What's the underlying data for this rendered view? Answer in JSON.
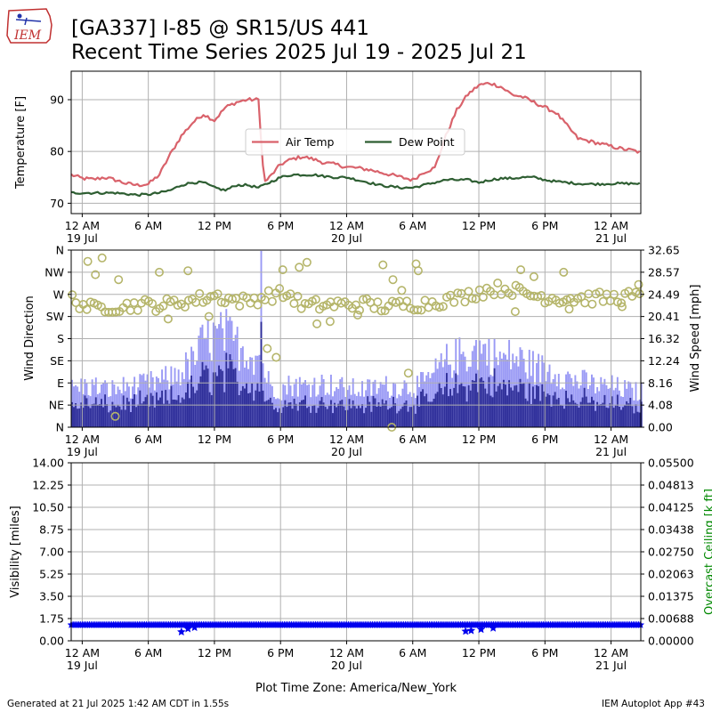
{
  "header": {
    "logo_text": "IEM",
    "title_line1": "[GA337] I-85 @ SR15/US 441",
    "title_line2": "Recent Time Series 2025 Jul 19 - 2025 Jul 21"
  },
  "footer": {
    "generated": "Generated at 21 Jul 2025 1:42 AM CDT in 1.55s",
    "app": "IEM Autoplot App #43"
  },
  "colors": {
    "air_temp": "#d9626b",
    "dew_point": "#2e5e32",
    "wind_dir": "#b5b56a",
    "wind_speed": "#9a9af5",
    "wind_speed_dark": "#2e2e99",
    "visibility": "#0000ee",
    "ceiling_axis": "#008800",
    "grid": "#b0b0b0"
  },
  "chart_data": [
    {
      "type": "line",
      "name": "temperature_panel",
      "ylabel": "Temperature [F]",
      "ylim": [
        68,
        95.5
      ],
      "yticks": [
        70,
        80,
        90
      ],
      "grid": true,
      "legend_position": "center",
      "x_hours": [
        -1,
        0,
        1,
        2,
        3,
        4,
        5,
        6,
        7,
        8,
        9,
        10,
        11,
        12,
        13,
        14,
        15,
        16,
        16.5,
        17,
        18,
        19,
        20,
        21,
        22,
        23,
        24,
        25,
        26,
        27,
        28,
        29,
        30,
        31,
        32,
        33,
        34,
        35,
        36,
        37,
        38,
        39,
        40,
        41,
        42,
        43,
        44,
        45,
        46,
        47,
        48,
        49,
        50,
        50.7
      ],
      "series": [
        {
          "name": "Air Temp",
          "values": [
            75.5,
            74.8,
            74.6,
            75.0,
            74.5,
            73.8,
            73.5,
            73.7,
            75.5,
            79.5,
            83.0,
            85.5,
            87.2,
            86.0,
            88.5,
            89.5,
            90.0,
            90.0,
            74.0,
            75.0,
            77.5,
            78.5,
            79.0,
            78.5,
            77.8,
            77.5,
            77.0,
            76.8,
            76.5,
            76.0,
            75.5,
            75.0,
            74.5,
            76.0,
            76.8,
            83.0,
            88.0,
            91.0,
            92.8,
            93.2,
            92.5,
            91.0,
            90.5,
            89.5,
            88.5,
            87.5,
            85.0,
            82.5,
            82.0,
            81.5,
            81.0,
            80.5,
            80.2,
            79.8
          ]
        },
        {
          "name": "Dew Point",
          "values": [
            72.0,
            72.0,
            72.0,
            72.0,
            72.0,
            71.8,
            71.6,
            71.7,
            72.0,
            72.5,
            73.5,
            74.0,
            74.0,
            73.0,
            72.5,
            73.5,
            73.5,
            73.0,
            73.5,
            74.0,
            75.0,
            75.5,
            75.5,
            75.5,
            75.2,
            75.0,
            75.0,
            74.5,
            74.0,
            73.5,
            73.2,
            73.0,
            73.0,
            73.5,
            74.0,
            74.5,
            74.5,
            74.5,
            74.0,
            74.5,
            74.8,
            74.8,
            75.0,
            75.0,
            74.5,
            74.2,
            74.0,
            73.8,
            73.7,
            73.7,
            73.8,
            73.8,
            73.8,
            73.8
          ]
        }
      ]
    },
    {
      "type": "scatter",
      "name": "wind_panel",
      "ylabel_left": "Wind Direction",
      "ylabel_right": "Wind Speed [mph]",
      "left_ticks": [
        "N",
        "NE",
        "E",
        "SE",
        "S",
        "SW",
        "W",
        "NW",
        "N"
      ],
      "right_ticks": [
        "0.00",
        "4.08",
        "8.16",
        "12.24",
        "16.32",
        "20.41",
        "24.49",
        "28.57",
        "32.65"
      ],
      "ylim_direction_deg": [
        0,
        360
      ],
      "ylim_speed_mph": [
        0,
        32.65
      ],
      "grid": true,
      "speed_hours": [
        -1,
        0,
        1,
        2,
        3,
        4,
        5,
        6,
        7,
        8,
        9,
        10,
        11,
        12,
        13,
        14,
        15,
        16,
        17,
        18,
        19,
        20,
        21,
        22,
        23,
        24,
        25,
        26,
        27,
        28,
        29,
        30,
        31,
        32,
        33,
        34,
        35,
        36,
        37,
        38,
        39,
        40,
        41,
        42,
        43,
        44,
        45,
        46,
        47,
        48,
        49,
        50,
        50.7
      ],
      "speed_mph": [
        7,
        7.5,
        7.5,
        7,
        7,
        7.5,
        7.5,
        8,
        8.5,
        9,
        10.5,
        12,
        16,
        16.5,
        17,
        15,
        14,
        13,
        7.5,
        7,
        8,
        7.5,
        8,
        8,
        7.5,
        7,
        7,
        7,
        7.5,
        7.5,
        7.5,
        7.5,
        8,
        10,
        12,
        13,
        13.5,
        14.5,
        13.5,
        12.5,
        13,
        12,
        11,
        10.5,
        10.5,
        9,
        8.5,
        8,
        7.5,
        7.5,
        7,
        6.5,
        6.5
      ],
      "speed_peak": {
        "hour": 16.2,
        "mph": 32.5
      },
      "direction_hours": [
        -1,
        0,
        1,
        2,
        3,
        4,
        5,
        6,
        7,
        8,
        9,
        10,
        11,
        12,
        13,
        14,
        15,
        16,
        17,
        18,
        19,
        20,
        21,
        22,
        23,
        24,
        25,
        26,
        27,
        28,
        29,
        30,
        31,
        32,
        33,
        34,
        35,
        36,
        37,
        38,
        39,
        40,
        41,
        42,
        43,
        44,
        45,
        46,
        47,
        48,
        49,
        50,
        50.7
      ],
      "direction_deg": [
        262,
        250,
        240,
        245,
        245,
        245,
        250,
        248,
        248,
        250,
        255,
        258,
        262,
        268,
        262,
        258,
        255,
        262,
        268,
        270,
        268,
        245,
        248,
        248,
        250,
        248,
        250,
        250,
        245,
        245,
        248,
        250,
        250,
        255,
        258,
        262,
        268,
        275,
        280,
        282,
        280,
        272,
        268,
        265,
        262,
        262,
        262,
        262,
        262,
        262,
        265,
        265,
        262
      ],
      "direction_outliers": [
        {
          "hour": 0.5,
          "deg": 337
        },
        {
          "hour": 1.8,
          "deg": 344
        },
        {
          "hour": 1.2,
          "deg": 310
        },
        {
          "hour": 3.3,
          "deg": 300
        },
        {
          "hour": 7.0,
          "deg": 315
        },
        {
          "hour": 9.6,
          "deg": 318
        },
        {
          "hour": 16.8,
          "deg": 160
        },
        {
          "hour": 17.6,
          "deg": 142
        },
        {
          "hour": 18.2,
          "deg": 320
        },
        {
          "hour": 19.7,
          "deg": 325
        },
        {
          "hour": 20.4,
          "deg": 335
        },
        {
          "hour": 21.3,
          "deg": 210
        },
        {
          "hour": 22.5,
          "deg": 215
        },
        {
          "hour": 27.3,
          "deg": 330
        },
        {
          "hour": 28.2,
          "deg": 300
        },
        {
          "hour": 29.0,
          "deg": 278
        },
        {
          "hour": 30.3,
          "deg": 332
        },
        {
          "hour": 30.5,
          "deg": 318
        },
        {
          "hour": 29.6,
          "deg": 110
        },
        {
          "hour": 28.1,
          "deg": 0
        },
        {
          "hour": 3.0,
          "deg": 22
        },
        {
          "hour": 39.8,
          "deg": 320
        },
        {
          "hour": 44.2,
          "deg": 240
        },
        {
          "hour": 49.0,
          "deg": 245
        },
        {
          "hour": 41.0,
          "deg": 306
        },
        {
          "hour": 43.7,
          "deg": 315
        },
        {
          "hour": 50.5,
          "deg": 290
        },
        {
          "hour": 7.8,
          "deg": 220
        },
        {
          "hour": 11.5,
          "deg": 225
        },
        {
          "hour": 25.0,
          "deg": 228
        },
        {
          "hour": 39.3,
          "deg": 235
        }
      ]
    },
    {
      "type": "scatter",
      "name": "visibility_panel",
      "ylabel_left": "Visibility [miles]",
      "ylabel_right": "Overcast Ceiling [k ft]",
      "left_ticks": [
        "0.00",
        "1.75",
        "3.50",
        "5.25",
        "7.00",
        "8.75",
        "10.50",
        "12.25",
        "14.00"
      ],
      "right_ticks": [
        "0.00000",
        "0.00688",
        "0.01375",
        "0.02063",
        "0.02750",
        "0.03438",
        "0.04125",
        "0.04813",
        "0.05500"
      ],
      "ylim_visibility": [
        0,
        14
      ],
      "grid": true,
      "visibility_baseline_miles": 1.25,
      "visibility_dips": [
        {
          "hour": 9.0,
          "miles": 0.7
        },
        {
          "hour": 9.6,
          "miles": 0.95
        },
        {
          "hour": 10.2,
          "miles": 1.05
        },
        {
          "hour": 34.8,
          "miles": 0.75
        },
        {
          "hour": 35.3,
          "miles": 0.8
        },
        {
          "hour": 36.2,
          "miles": 0.9
        },
        {
          "hour": 37.3,
          "miles": 1.0
        }
      ]
    }
  ],
  "x_axis": {
    "xlabel": "Plot Time Zone: America/New_York",
    "range_hours": [
      -1,
      50.7
    ],
    "ticks": [
      {
        "hour": 0,
        "label": "12 AM",
        "sub": "19 Jul"
      },
      {
        "hour": 6,
        "label": "6 AM",
        "sub": ""
      },
      {
        "hour": 12,
        "label": "12 PM",
        "sub": ""
      },
      {
        "hour": 18,
        "label": "6 PM",
        "sub": ""
      },
      {
        "hour": 24,
        "label": "12 AM",
        "sub": "20 Jul"
      },
      {
        "hour": 30,
        "label": "6 AM",
        "sub": ""
      },
      {
        "hour": 36,
        "label": "12 PM",
        "sub": ""
      },
      {
        "hour": 42,
        "label": "6 PM",
        "sub": ""
      },
      {
        "hour": 48,
        "label": "12 AM",
        "sub": "21 Jul"
      }
    ]
  }
}
